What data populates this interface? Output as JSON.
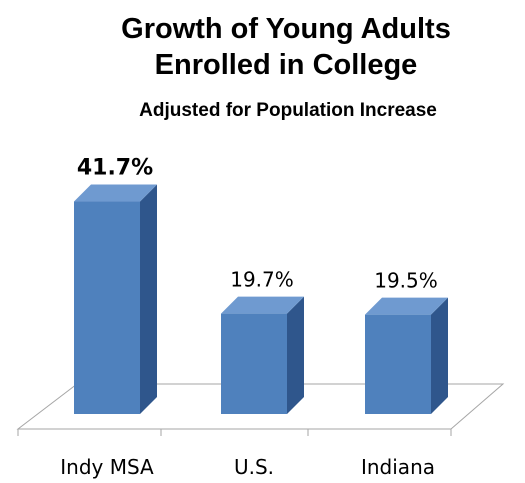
{
  "chart_data": {
    "type": "bar",
    "title": "Growth of Young Adults Enrolled in College",
    "title_lines": [
      "Growth of Young Adults",
      "Enrolled in College"
    ],
    "subtitle": "Adjusted for Population Increase",
    "categories": [
      "Indy MSA",
      "U.S.",
      "Indiana"
    ],
    "values": [
      41.7,
      19.7,
      19.5
    ],
    "data_labels": [
      "41.7%",
      "19.7%",
      "19.5%"
    ],
    "bold_labels": [
      true,
      false,
      false
    ],
    "value_unit": "%",
    "xlabel": "",
    "ylabel": "",
    "ylim": [
      0,
      42
    ],
    "grid": false,
    "legend": "none",
    "style": "3d-column",
    "colors": {
      "bar_front": "#4f81bd",
      "bar_side": "#2f568c",
      "bar_top": "#6f9ad0",
      "floor_line": "#a6a6a6"
    }
  }
}
